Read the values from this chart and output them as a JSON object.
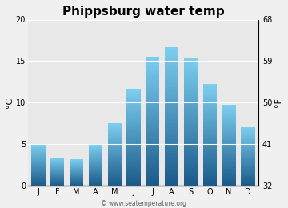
{
  "title": "Phippsburg water temp",
  "months": [
    "J",
    "F",
    "M",
    "A",
    "M",
    "J",
    "J",
    "A",
    "S",
    "O",
    "N",
    "D"
  ],
  "values_c": [
    5.0,
    3.4,
    3.2,
    5.0,
    7.5,
    11.7,
    15.5,
    16.7,
    15.4,
    12.3,
    9.8,
    7.1
  ],
  "ylim_c": [
    0,
    20
  ],
  "yticks_c": [
    0,
    5,
    10,
    15,
    20
  ],
  "yticks_f": [
    32,
    41,
    50,
    59,
    68
  ],
  "ylabel_left": "°C",
  "ylabel_right": "°F",
  "bar_color_top": "#7dcff0",
  "bar_color_bottom": "#1a5a8a",
  "plot_bg_color": "#e8e8e8",
  "fig_bg_color": "#f0f0f0",
  "title_fontsize": 11,
  "tick_fontsize": 7,
  "watermark": "© www.seatemperature.org",
  "watermark_fontsize": 5.5
}
